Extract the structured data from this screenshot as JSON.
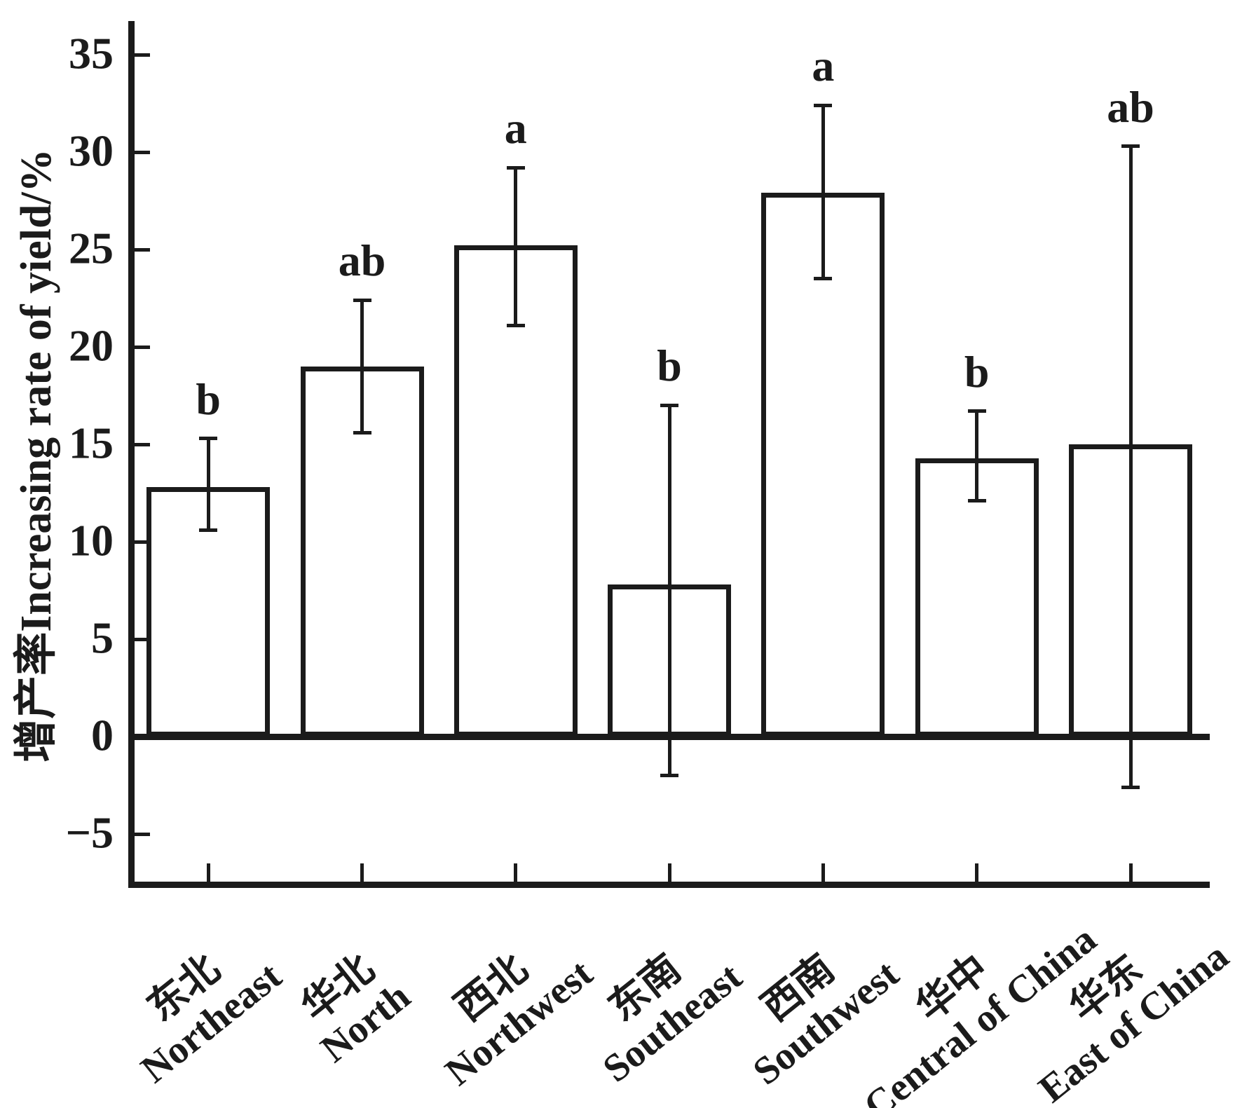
{
  "chart_data": {
    "type": "bar",
    "title": "",
    "ylabel": "增产率Increasing rate of yield/%",
    "xlabel": "",
    "ylim": [
      -7.6,
      36.7
    ],
    "yticks": [
      35,
      30,
      25,
      20,
      15,
      10,
      5,
      0,
      -5
    ],
    "grid": false,
    "legend": null,
    "bar_fill_color": "#ffffff",
    "line_color": "#1b1b1b",
    "categories": [
      {
        "zh": "东北",
        "en": "Northeast"
      },
      {
        "zh": "华北",
        "en": "North"
      },
      {
        "zh": "西北",
        "en": "Northwest"
      },
      {
        "zh": "东南",
        "en": "Southeast"
      },
      {
        "zh": "西南",
        "en": "Southwest"
      },
      {
        "zh": "华中",
        "en": "Central of China"
      },
      {
        "zh": "华东",
        "en": "East of China"
      }
    ],
    "series": [
      {
        "name": "Increasing rate of yield/%",
        "values": [
          12.8,
          19.0,
          25.2,
          7.8,
          27.9,
          14.3,
          15.0
        ],
        "error_upper": [
          15.3,
          22.4,
          29.2,
          17.0,
          32.4,
          16.7,
          30.3
        ],
        "error_lower": [
          10.6,
          15.6,
          21.1,
          -2.0,
          23.5,
          12.1,
          -2.6
        ],
        "sig_letters": [
          "b",
          "ab",
          "a",
          "b",
          "a",
          "b",
          "ab"
        ]
      }
    ]
  }
}
